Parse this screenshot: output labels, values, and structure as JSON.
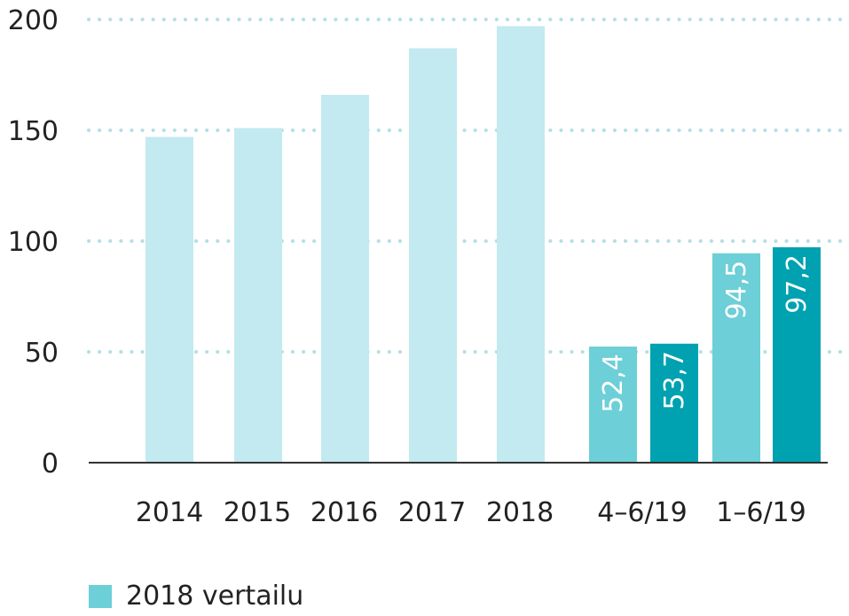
{
  "chart_data": {
    "type": "bar",
    "categories": [
      "2014",
      "2015",
      "2016",
      "2017",
      "2018",
      "4–6/19",
      "4–6/19",
      "1–6/19",
      "1–6/19"
    ],
    "x_tick_labels": [
      "2014",
      "2015",
      "2016",
      "2017",
      "2018",
      "4–6/19",
      "1–6/19"
    ],
    "values": [
      147,
      151,
      166,
      187,
      197,
      52.4,
      53.7,
      94.5,
      97.2
    ],
    "data_labels": [
      "",
      "",
      "",
      "",
      "",
      "52,4",
      "53,7",
      "94,5",
      "97,2"
    ],
    "y_ticks": [
      0,
      50,
      100,
      150,
      200
    ],
    "ylim": [
      0,
      200
    ],
    "grid": "dotted horizontal",
    "legend": [
      {
        "label": "2018 vertailu",
        "color": "#6dcfd7"
      }
    ],
    "legend_position": "bottom-left",
    "colors": {
      "annual": "#c2eaf0",
      "comparison_2018": "#6dcfd7",
      "current": "#00a1b0",
      "grid": "#b3dfe6",
      "axis": "#333333"
    }
  }
}
